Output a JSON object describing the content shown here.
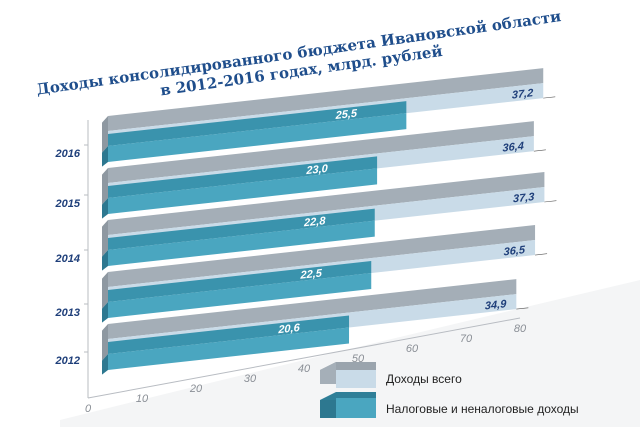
{
  "chart_data": {
    "type": "bar",
    "orientation": "horizontal",
    "style": "3d",
    "title": "Доходы консолидированного бюджета Ивановской области в 2012-2016 годах, млрд. рублей",
    "title_lines": [
      "Доходы консолидированного бюджета Ивановской области",
      "в 2012-2016 годах, млрд. рублей"
    ],
    "categories": [
      "2016",
      "2015",
      "2014",
      "2013",
      "2012"
    ],
    "series": [
      {
        "name": "Доходы всего",
        "values": [
          37.2,
          36.4,
          37.3,
          36.5,
          34.9
        ],
        "labels": [
          "37,2",
          "36,4",
          "37,3",
          "36,5",
          "34,9"
        ],
        "color": "#c9dbe8"
      },
      {
        "name": "Налоговые и неналоговые доходы",
        "values": [
          25.5,
          23.0,
          22.8,
          22.5,
          20.6
        ],
        "labels": [
          "25,5",
          "23,0",
          "22,8",
          "22,5",
          "20,6"
        ],
        "color": "#3a93ad"
      }
    ],
    "xticks": [
      "0",
      "10",
      "20",
      "30",
      "40",
      "50",
      "60",
      "70",
      "80"
    ],
    "xlim": [
      0,
      80
    ],
    "legend": "bottom-right",
    "grid": false
  }
}
